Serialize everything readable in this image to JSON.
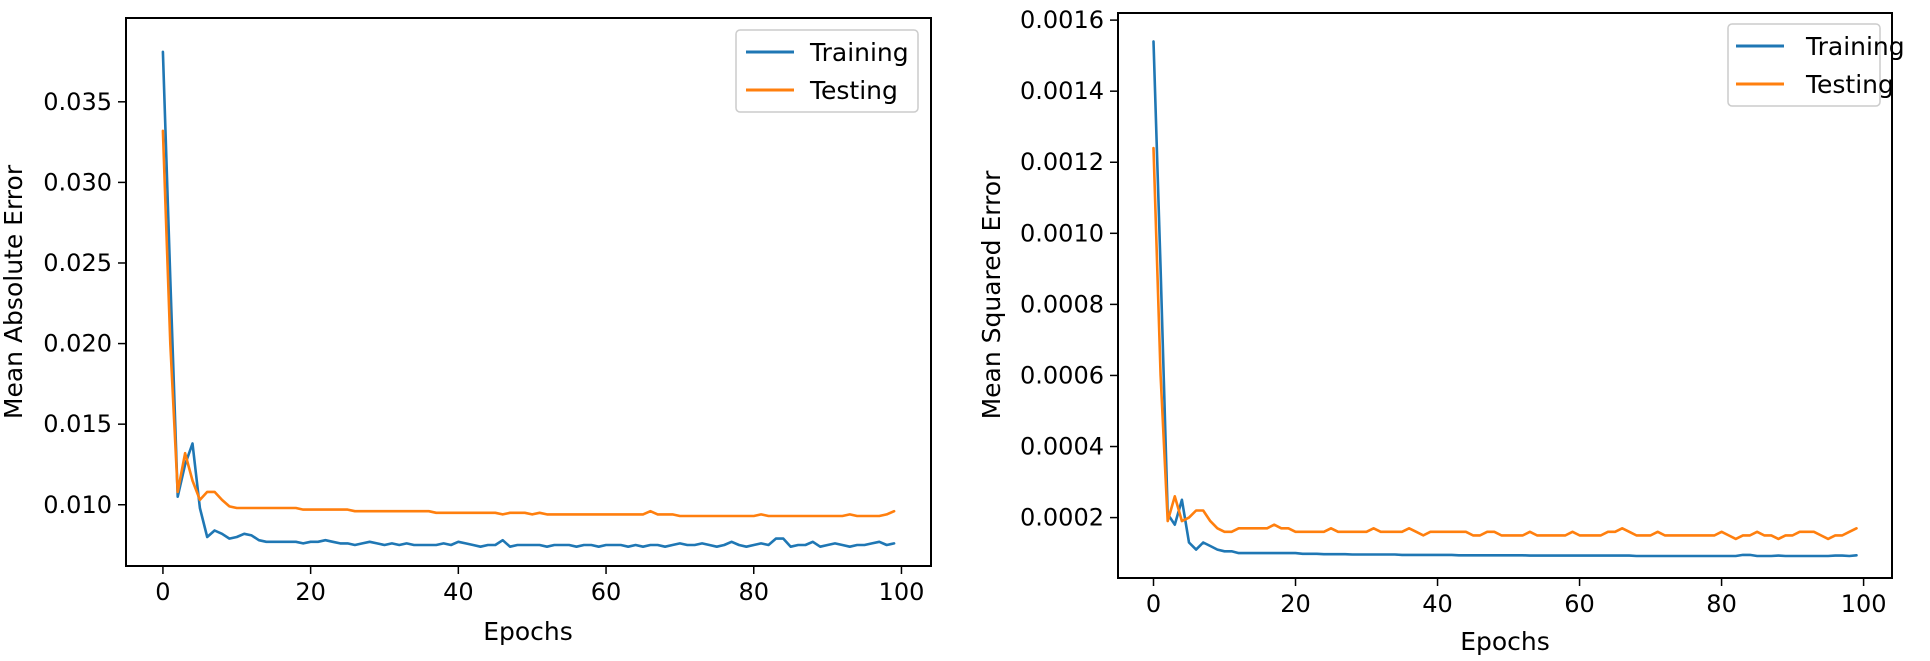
{
  "chart_data": [
    {
      "type": "line",
      "xlabel": "Epochs",
      "ylabel": "Mean Absolute Error",
      "xlim": [
        -5,
        104
      ],
      "ylim": [
        0.0062,
        0.0402
      ],
      "xticks": [
        0,
        20,
        40,
        60,
        80,
        100
      ],
      "xtick_labels": [
        "0",
        "20",
        "40",
        "60",
        "80",
        "100"
      ],
      "yticks": [
        0.01,
        0.015,
        0.02,
        0.025,
        0.03,
        0.035
      ],
      "ytick_labels": [
        "0.010",
        "0.015",
        "0.020",
        "0.025",
        "0.030",
        "0.035"
      ],
      "legend_position": "top-right",
      "series": [
        {
          "name": "Training",
          "color": "#1f77b4",
          "x": [
            0,
            1,
            2,
            3,
            4,
            5,
            6,
            7,
            8,
            9,
            10,
            11,
            12,
            13,
            14,
            15,
            16,
            17,
            18,
            19,
            20,
            21,
            22,
            23,
            24,
            25,
            26,
            27,
            28,
            29,
            30,
            31,
            32,
            33,
            34,
            35,
            36,
            37,
            38,
            39,
            40,
            41,
            42,
            43,
            44,
            45,
            46,
            47,
            48,
            49,
            50,
            51,
            52,
            53,
            54,
            55,
            56,
            57,
            58,
            59,
            60,
            61,
            62,
            63,
            64,
            65,
            66,
            67,
            68,
            69,
            70,
            71,
            72,
            73,
            74,
            75,
            76,
            77,
            78,
            79,
            80,
            81,
            82,
            83,
            84,
            85,
            86,
            87,
            88,
            89,
            90,
            91,
            92,
            93,
            94,
            95,
            96,
            97,
            98,
            99
          ],
          "values": [
            0.0381,
            0.024,
            0.0105,
            0.0125,
            0.0138,
            0.0098,
            0.008,
            0.0084,
            0.0082,
            0.0079,
            0.008,
            0.0082,
            0.0081,
            0.0078,
            0.0077,
            0.0077,
            0.0077,
            0.0077,
            0.0077,
            0.0076,
            0.0077,
            0.0077,
            0.0078,
            0.0077,
            0.0076,
            0.0076,
            0.0075,
            0.0076,
            0.0077,
            0.0076,
            0.0075,
            0.0076,
            0.0075,
            0.0076,
            0.0075,
            0.0075,
            0.0075,
            0.0075,
            0.0076,
            0.0075,
            0.0077,
            0.0076,
            0.0075,
            0.0074,
            0.0075,
            0.0075,
            0.0078,
            0.0074,
            0.0075,
            0.0075,
            0.0075,
            0.0075,
            0.0074,
            0.0075,
            0.0075,
            0.0075,
            0.0074,
            0.0075,
            0.0075,
            0.0074,
            0.0075,
            0.0075,
            0.0075,
            0.0074,
            0.0075,
            0.0074,
            0.0075,
            0.0075,
            0.0074,
            0.0075,
            0.0076,
            0.0075,
            0.0075,
            0.0076,
            0.0075,
            0.0074,
            0.0075,
            0.0077,
            0.0075,
            0.0074,
            0.0075,
            0.0076,
            0.0075,
            0.0079,
            0.0079,
            0.0074,
            0.0075,
            0.0075,
            0.0077,
            0.0074,
            0.0075,
            0.0076,
            0.0075,
            0.0074,
            0.0075,
            0.0075,
            0.0076,
            0.0077,
            0.0075,
            0.0076
          ]
        },
        {
          "name": "Testing",
          "color": "#ff7f0e",
          "x": [
            0,
            1,
            2,
            3,
            4,
            5,
            6,
            7,
            8,
            9,
            10,
            11,
            12,
            13,
            14,
            15,
            16,
            17,
            18,
            19,
            20,
            21,
            22,
            23,
            24,
            25,
            26,
            27,
            28,
            29,
            30,
            31,
            32,
            33,
            34,
            35,
            36,
            37,
            38,
            39,
            40,
            41,
            42,
            43,
            44,
            45,
            46,
            47,
            48,
            49,
            50,
            51,
            52,
            53,
            54,
            55,
            56,
            57,
            58,
            59,
            60,
            61,
            62,
            63,
            64,
            65,
            66,
            67,
            68,
            69,
            70,
            71,
            72,
            73,
            74,
            75,
            76,
            77,
            78,
            79,
            80,
            81,
            82,
            83,
            84,
            85,
            86,
            87,
            88,
            89,
            90,
            91,
            92,
            93,
            94,
            95,
            96,
            97,
            98,
            99
          ],
          "values": [
            0.0332,
            0.02,
            0.0108,
            0.0132,
            0.0115,
            0.0103,
            0.0108,
            0.0108,
            0.0103,
            0.0099,
            0.0098,
            0.0098,
            0.0098,
            0.0098,
            0.0098,
            0.0098,
            0.0098,
            0.0098,
            0.0098,
            0.0097,
            0.0097,
            0.0097,
            0.0097,
            0.0097,
            0.0097,
            0.0097,
            0.0096,
            0.0096,
            0.0096,
            0.0096,
            0.0096,
            0.0096,
            0.0096,
            0.0096,
            0.0096,
            0.0096,
            0.0096,
            0.0095,
            0.0095,
            0.0095,
            0.0095,
            0.0095,
            0.0095,
            0.0095,
            0.0095,
            0.0095,
            0.0094,
            0.0095,
            0.0095,
            0.0095,
            0.0094,
            0.0095,
            0.0094,
            0.0094,
            0.0094,
            0.0094,
            0.0094,
            0.0094,
            0.0094,
            0.0094,
            0.0094,
            0.0094,
            0.0094,
            0.0094,
            0.0094,
            0.0094,
            0.0096,
            0.0094,
            0.0094,
            0.0094,
            0.0093,
            0.0093,
            0.0093,
            0.0093,
            0.0093,
            0.0093,
            0.0093,
            0.0093,
            0.0093,
            0.0093,
            0.0093,
            0.0094,
            0.0093,
            0.0093,
            0.0093,
            0.0093,
            0.0093,
            0.0093,
            0.0093,
            0.0093,
            0.0093,
            0.0093,
            0.0093,
            0.0094,
            0.0093,
            0.0093,
            0.0093,
            0.0093,
            0.0094,
            0.0096
          ]
        }
      ]
    },
    {
      "type": "line",
      "xlabel": "Epochs",
      "ylabel": "Mean Squared Error",
      "xlim": [
        -5,
        104
      ],
      "ylim": [
        3e-05,
        0.00162
      ],
      "xticks": [
        0,
        20,
        40,
        60,
        80,
        100
      ],
      "xtick_labels": [
        "0",
        "20",
        "40",
        "60",
        "80",
        "100"
      ],
      "yticks": [
        0.0002,
        0.0004,
        0.0006,
        0.0008,
        0.001,
        0.0012,
        0.0014,
        0.0016
      ],
      "ytick_labels": [
        "0.0002",
        "0.0004",
        "0.0006",
        "0.0008",
        "0.0010",
        "0.0012",
        "0.0014",
        "0.0016"
      ],
      "legend_position": "top-right",
      "series": [
        {
          "name": "Training",
          "color": "#1f77b4",
          "x": [
            0,
            1,
            2,
            3,
            4,
            5,
            6,
            7,
            8,
            9,
            10,
            11,
            12,
            13,
            14,
            15,
            16,
            17,
            18,
            19,
            20,
            21,
            22,
            23,
            24,
            25,
            26,
            27,
            28,
            29,
            30,
            31,
            32,
            33,
            34,
            35,
            36,
            37,
            38,
            39,
            40,
            41,
            42,
            43,
            44,
            45,
            46,
            47,
            48,
            49,
            50,
            51,
            52,
            53,
            54,
            55,
            56,
            57,
            58,
            59,
            60,
            61,
            62,
            63,
            64,
            65,
            66,
            67,
            68,
            69,
            70,
            71,
            72,
            73,
            74,
            75,
            76,
            77,
            78,
            79,
            80,
            81,
            82,
            83,
            84,
            85,
            86,
            87,
            88,
            89,
            90,
            91,
            92,
            93,
            94,
            95,
            96,
            97,
            98,
            99
          ],
          "values": [
            0.00154,
            0.0009,
            0.00021,
            0.00018,
            0.00025,
            0.00013,
            0.00011,
            0.00013,
            0.00012,
            0.00011,
            0.000105,
            0.000105,
            0.0001,
            0.0001,
            0.0001,
            0.0001,
            0.0001,
            0.0001,
            0.0001,
            0.0001,
            0.0001,
            9.8e-05,
            9.8e-05,
            9.8e-05,
            9.7e-05,
            9.7e-05,
            9.7e-05,
            9.7e-05,
            9.6e-05,
            9.6e-05,
            9.6e-05,
            9.6e-05,
            9.6e-05,
            9.6e-05,
            9.6e-05,
            9.5e-05,
            9.5e-05,
            9.5e-05,
            9.5e-05,
            9.5e-05,
            9.5e-05,
            9.5e-05,
            9.5e-05,
            9.4e-05,
            9.4e-05,
            9.4e-05,
            9.4e-05,
            9.4e-05,
            9.4e-05,
            9.4e-05,
            9.4e-05,
            9.4e-05,
            9.4e-05,
            9.3e-05,
            9.3e-05,
            9.3e-05,
            9.3e-05,
            9.3e-05,
            9.3e-05,
            9.3e-05,
            9.3e-05,
            9.3e-05,
            9.3e-05,
            9.3e-05,
            9.3e-05,
            9.3e-05,
            9.3e-05,
            9.3e-05,
            9.2e-05,
            9.2e-05,
            9.2e-05,
            9.2e-05,
            9.2e-05,
            9.2e-05,
            9.2e-05,
            9.2e-05,
            9.2e-05,
            9.2e-05,
            9.2e-05,
            9.2e-05,
            9.2e-05,
            9.2e-05,
            9.2e-05,
            9.5e-05,
            9.5e-05,
            9.2e-05,
            9.2e-05,
            9.2e-05,
            9.3e-05,
            9.2e-05,
            9.2e-05,
            9.2e-05,
            9.2e-05,
            9.2e-05,
            9.2e-05,
            9.2e-05,
            9.3e-05,
            9.3e-05,
            9.2e-05,
            9.4e-05
          ]
        },
        {
          "name": "Testing",
          "color": "#ff7f0e",
          "x": [
            0,
            1,
            2,
            3,
            4,
            5,
            6,
            7,
            8,
            9,
            10,
            11,
            12,
            13,
            14,
            15,
            16,
            17,
            18,
            19,
            20,
            21,
            22,
            23,
            24,
            25,
            26,
            27,
            28,
            29,
            30,
            31,
            32,
            33,
            34,
            35,
            36,
            37,
            38,
            39,
            40,
            41,
            42,
            43,
            44,
            45,
            46,
            47,
            48,
            49,
            50,
            51,
            52,
            53,
            54,
            55,
            56,
            57,
            58,
            59,
            60,
            61,
            62,
            63,
            64,
            65,
            66,
            67,
            68,
            69,
            70,
            71,
            72,
            73,
            74,
            75,
            76,
            77,
            78,
            79,
            80,
            81,
            82,
            83,
            84,
            85,
            86,
            87,
            88,
            89,
            90,
            91,
            92,
            93,
            94,
            95,
            96,
            97,
            98,
            99
          ],
          "values": [
            0.00124,
            0.0006,
            0.00019,
            0.00026,
            0.00019,
            0.0002,
            0.00022,
            0.00022,
            0.00019,
            0.00017,
            0.00016,
            0.00016,
            0.00017,
            0.00017,
            0.00017,
            0.00017,
            0.00017,
            0.00018,
            0.00017,
            0.00017,
            0.00016,
            0.00016,
            0.00016,
            0.00016,
            0.00016,
            0.00017,
            0.00016,
            0.00016,
            0.00016,
            0.00016,
            0.00016,
            0.00017,
            0.00016,
            0.00016,
            0.00016,
            0.00016,
            0.00017,
            0.00016,
            0.00015,
            0.00016,
            0.00016,
            0.00016,
            0.00016,
            0.00016,
            0.00016,
            0.00015,
            0.00015,
            0.00016,
            0.00016,
            0.00015,
            0.00015,
            0.00015,
            0.00015,
            0.00016,
            0.00015,
            0.00015,
            0.00015,
            0.00015,
            0.00015,
            0.00016,
            0.00015,
            0.00015,
            0.00015,
            0.00015,
            0.00016,
            0.00016,
            0.00017,
            0.00016,
            0.00015,
            0.00015,
            0.00015,
            0.00016,
            0.00015,
            0.00015,
            0.00015,
            0.00015,
            0.00015,
            0.00015,
            0.00015,
            0.00015,
            0.00016,
            0.00015,
            0.00014,
            0.00015,
            0.00015,
            0.00016,
            0.00015,
            0.00015,
            0.00014,
            0.00015,
            0.00015,
            0.00016,
            0.00016,
            0.00016,
            0.00015,
            0.00014,
            0.00015,
            0.00015,
            0.00016,
            0.00017
          ]
        }
      ]
    }
  ]
}
